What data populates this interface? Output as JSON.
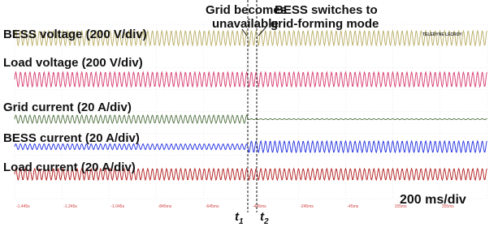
{
  "traces": [
    {
      "label": "BESS voltage (200 V/div)"
    },
    {
      "label": "Load voltage (200 V/div)"
    },
    {
      "label": "Grid current (20 A/div)"
    },
    {
      "label": "BESS current (20 A/div)"
    },
    {
      "label": "Load current (20 A/div)"
    }
  ],
  "annotations": {
    "grid_unavailable": [
      "Grid becomes",
      "unavailable"
    ],
    "bess_switch": [
      "BESS switches to",
      "grid-forming mode"
    ]
  },
  "markers": {
    "t1": {
      "base": "t",
      "sub": "1"
    },
    "t2": {
      "base": "t",
      "sub": "2"
    }
  },
  "timebase": "200 ms/div",
  "brand": "TELEDYNE LECROY",
  "time_labels": [
    "-1.445s",
    "-1.245s",
    "-1.045s",
    "-845ms",
    "-645ms",
    "-445ms",
    "-245ms",
    "-45ms",
    "155ms",
    "355ms"
  ]
}
